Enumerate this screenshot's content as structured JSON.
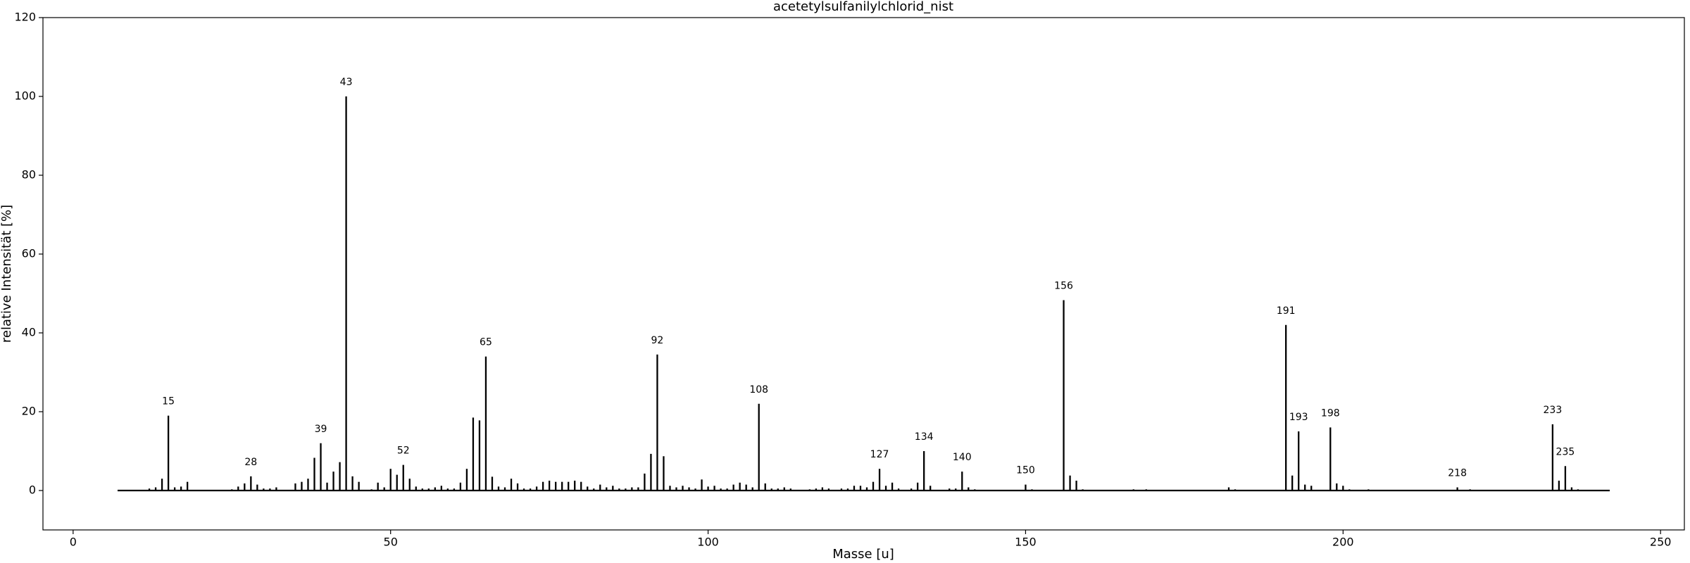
{
  "chart_data": {
    "type": "stem",
    "title": "acetetylsulfanilylchlorid_nist",
    "x_label": "Masse [u]",
    "y_label": "relative Intensität [%]",
    "color": "#000000",
    "xlim": [
      -4.75,
      253.75
    ],
    "ylim": [
      -10,
      120
    ],
    "xticks": [
      0,
      50,
      100,
      150,
      200,
      250
    ],
    "yticks": [
      0,
      20,
      40,
      60,
      80,
      100,
      120
    ],
    "x": [
      7,
      12,
      13,
      14,
      15,
      16,
      17,
      18,
      25,
      26,
      27,
      28,
      29,
      30,
      31,
      32,
      35,
      36,
      37,
      38,
      39,
      40,
      41,
      42,
      43,
      44,
      45,
      47,
      48,
      49,
      50,
      51,
      52,
      53,
      54,
      55,
      56,
      57,
      58,
      59,
      60,
      61,
      62,
      63,
      64,
      65,
      66,
      67,
      68,
      69,
      70,
      71,
      72,
      73,
      74,
      75,
      76,
      77,
      78,
      79,
      80,
      81,
      82,
      83,
      84,
      85,
      86,
      87,
      88,
      89,
      90,
      91,
      92,
      93,
      94,
      95,
      96,
      97,
      98,
      99,
      100,
      101,
      102,
      103,
      104,
      105,
      106,
      107,
      108,
      109,
      110,
      111,
      112,
      113,
      116,
      117,
      118,
      119,
      121,
      122,
      123,
      124,
      125,
      126,
      127,
      128,
      129,
      130,
      132,
      133,
      134,
      135,
      138,
      139,
      140,
      141,
      142,
      150,
      151,
      156,
      157,
      158,
      159,
      167,
      169,
      182,
      183,
      191,
      192,
      193,
      194,
      195,
      198,
      199,
      200,
      201,
      204,
      218,
      220,
      233,
      234,
      235,
      236,
      237,
      242
    ],
    "values": [
      0,
      0.5,
      0.8,
      3,
      19,
      0.8,
      1,
      2.2,
      0.3,
      1,
      1.8,
      3.6,
      1.5,
      0.5,
      0.5,
      0.8,
      1.8,
      2.2,
      3,
      8.3,
      12,
      2,
      4.8,
      7.2,
      100,
      3.6,
      2.2,
      0.3,
      2,
      0.8,
      5.5,
      4,
      6.5,
      3,
      1,
      0.5,
      0.5,
      0.8,
      1.2,
      0.5,
      0.5,
      2,
      5.5,
      18.5,
      17.8,
      34,
      3.5,
      1,
      0.8,
      3,
      1.8,
      0.5,
      0.5,
      1,
      2.2,
      2.5,
      2.2,
      2.2,
      2.2,
      2.5,
      2.2,
      1,
      0.5,
      1.5,
      0.8,
      1.2,
      0.5,
      0.5,
      0.8,
      0.8,
      4.3,
      9.3,
      34.5,
      8.7,
      1.2,
      0.8,
      1.2,
      0.8,
      0.5,
      2.8,
      1,
      1.2,
      0.5,
      0.5,
      1.5,
      2,
      1.5,
      0.8,
      22,
      1.8,
      0.5,
      0.5,
      0.8,
      0.5,
      0.3,
      0.5,
      0.8,
      0.5,
      0.5,
      0.5,
      1.2,
      1.2,
      0.8,
      2.2,
      5.5,
      1.2,
      2,
      0.5,
      0.5,
      2,
      10,
      1.2,
      0.5,
      0.5,
      4.8,
      0.8,
      0.3,
      1.5,
      0.3,
      48.3,
      3.8,
      2.5,
      0.3,
      0.3,
      0.3,
      0.8,
      0.3,
      42,
      3.8,
      15,
      1.5,
      1.2,
      16,
      1.8,
      1.2,
      0.3,
      0.3,
      0.8,
      0.3,
      16.8,
      2.5,
      6.2,
      0.8,
      0.3,
      0
    ],
    "annotations": [
      15,
      28,
      39,
      43,
      52,
      65,
      92,
      108,
      127,
      134,
      140,
      150,
      156,
      191,
      193,
      198,
      218,
      233,
      235
    ]
  }
}
